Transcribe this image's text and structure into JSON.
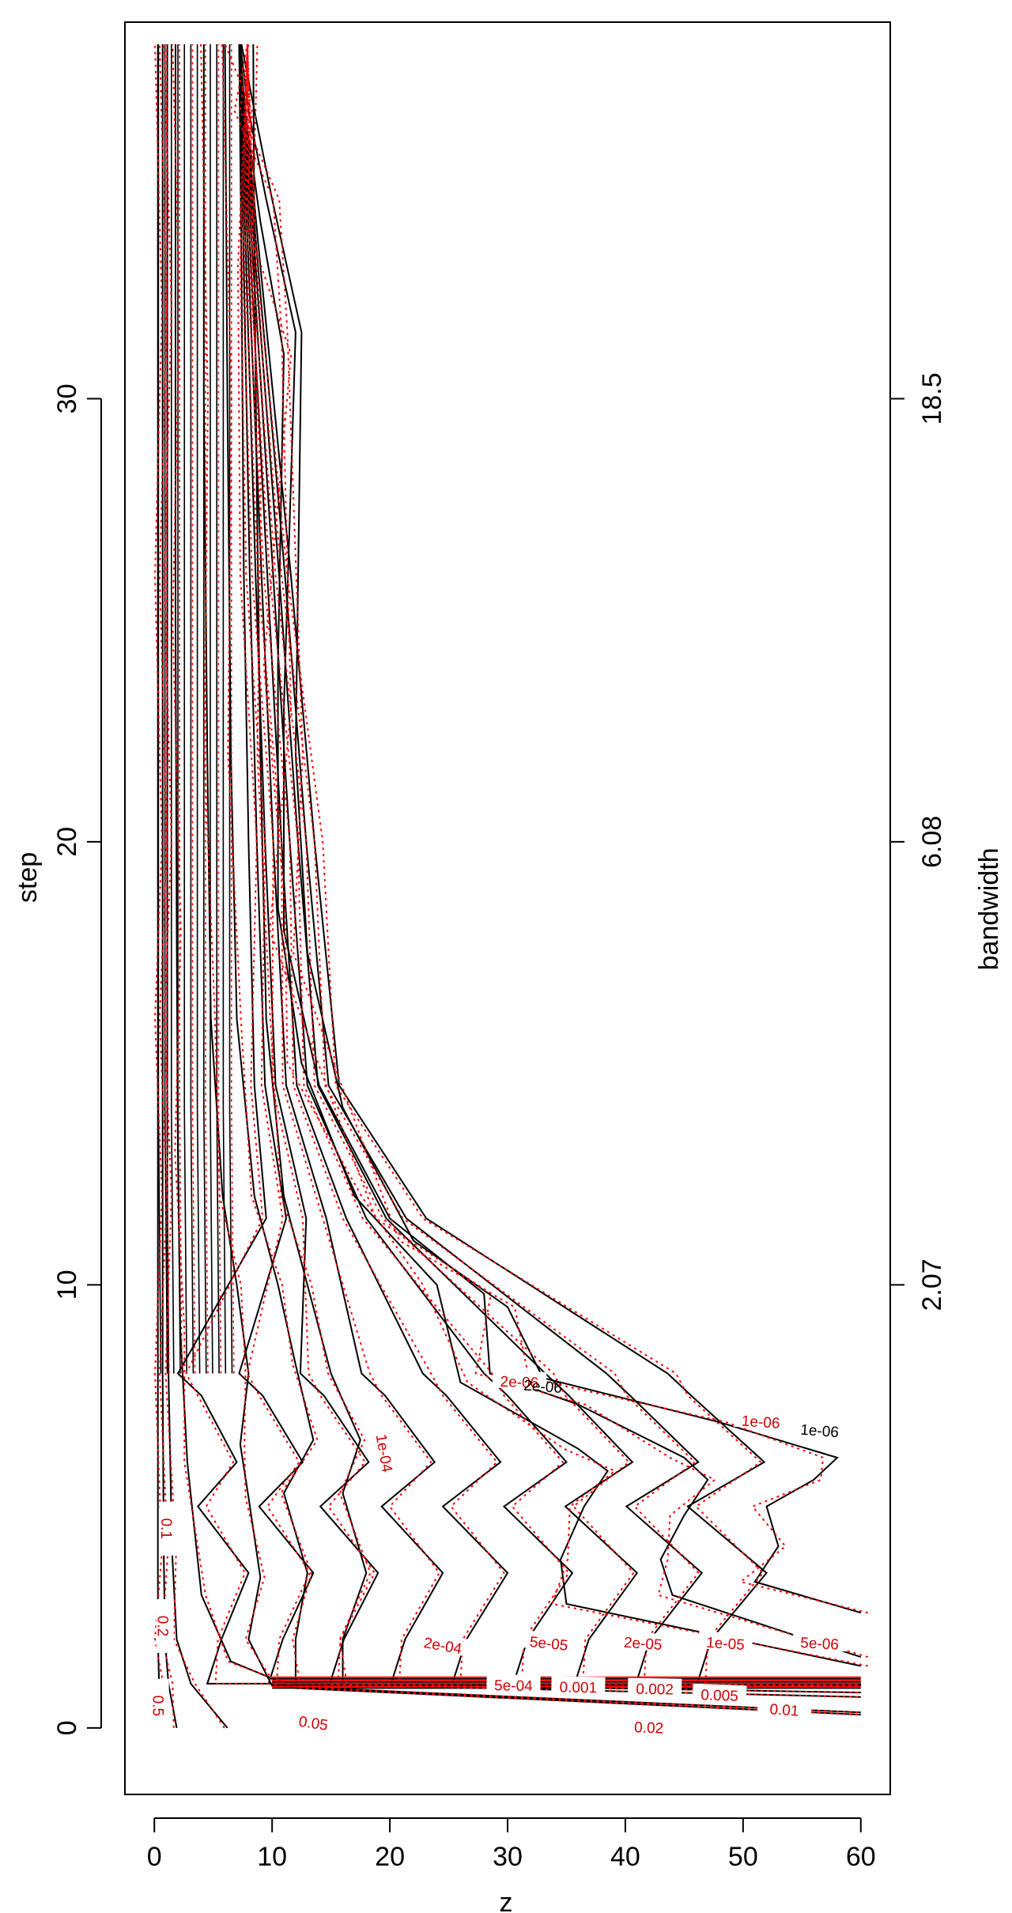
{
  "chart_data": {
    "type": "contour",
    "xlabel": "z",
    "ylabel": "step",
    "right_axis_label": "bandwidth",
    "xlim": [
      -2.5,
      62.5
    ],
    "ylim": [
      -1.5,
      38.5
    ],
    "x_ticks": [
      "0",
      "10",
      "20",
      "30",
      "40",
      "50",
      "60"
    ],
    "y_ticks": [
      "0",
      "10",
      "20",
      "30"
    ],
    "right_ticks": [
      {
        "step": 10,
        "label": "2.07"
      },
      {
        "step": 20,
        "label": "6.08"
      },
      {
        "step": 30,
        "label": "18.5"
      }
    ],
    "series": [
      {
        "line_style": "solid",
        "color": "#000000"
      },
      {
        "line_style": "dotted",
        "color": "#ff0000"
      }
    ],
    "contour_levels": [
      {
        "label": "0.5",
        "x": [
          0.5,
          0.4,
          0.3,
          0.3,
          0.3,
          0.3,
          0.3,
          0.3,
          0.3,
          0.3,
          0.3
        ],
        "y": [
          0,
          1,
          2,
          4,
          8,
          12,
          16,
          20,
          26,
          32,
          38
        ]
      },
      {
        "label": "0.2",
        "x": [
          1.9,
          1.2,
          0.9,
          0.8,
          0.7,
          0.7,
          0.7,
          0.7,
          0.7,
          0.7,
          0.7
        ],
        "y": [
          0,
          1,
          2,
          4,
          8,
          12,
          16,
          20,
          26,
          32,
          38
        ]
      },
      {
        "label": "0.1",
        "x": [
          6.2,
          3.1,
          1.9,
          1.5,
          1.2,
          1.1,
          1.1,
          1.1,
          1.1,
          1.1,
          1.1
        ],
        "y": [
          0,
          1,
          2,
          4,
          8,
          12,
          16,
          20,
          26,
          32,
          38
        ]
      },
      {
        "label": "0.05",
        "x": [
          60,
          12,
          6.5,
          4,
          2.8,
          2.2,
          2.0,
          1.9,
          1.8,
          1.8,
          1.8
        ],
        "y": [
          0.3,
          0.9,
          1.5,
          3,
          6,
          9,
          13,
          18,
          25,
          32,
          38
        ]
      },
      {
        "label": "0.02",
        "x": [
          60,
          10,
          8,
          9,
          8,
          7.3,
          8,
          7,
          5.8,
          4.8,
          4.5,
          4.2,
          4.2
        ],
        "y": [
          0.35,
          0.95,
          2,
          3.4,
          5.2,
          6.4,
          8,
          10,
          12,
          16,
          22,
          30,
          38
        ]
      },
      {
        "label": "0.01",
        "x": [
          60,
          12,
          12,
          13,
          11,
          13.5,
          12,
          10.5,
          8.5,
          7,
          6.5,
          6.2,
          6.0
        ],
        "y": [
          0.7,
          1.0,
          2,
          3.5,
          5.3,
          6.5,
          8.2,
          10,
          12,
          16,
          22,
          30,
          38
        ]
      },
      {
        "label": "0.005",
        "x": [
          60,
          16,
          16,
          18,
          16,
          17.5,
          15,
          13,
          11,
          9.5,
          9,
          8.7,
          8.5,
          8.4
        ],
        "y": [
          0.8,
          1.0,
          2,
          3.5,
          5.3,
          6.5,
          8,
          10,
          12,
          16,
          22,
          28,
          33,
          38
        ]
      }
    ],
    "level_labels": [
      "0.5",
      "0.2",
      "0.1",
      "0.05",
      "0.02",
      "0.01",
      "0.005",
      "0.002",
      "0.001",
      "5e-04",
      "2e-04",
      "1e-04",
      "5e-05",
      "2e-05",
      "1e-05",
      "5e-06",
      "2e-06",
      "1e-06"
    ]
  }
}
